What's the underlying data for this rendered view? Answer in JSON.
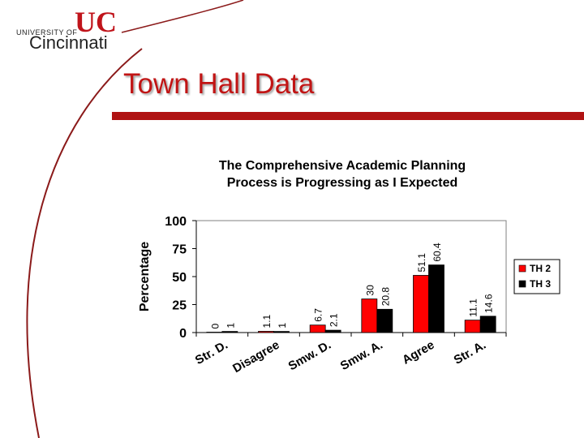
{
  "logo": {
    "university_of": "UNIVERSITY OF",
    "cincinnati": "Cincinnati",
    "mark": "UC"
  },
  "slide": {
    "title": "Town Hall Data"
  },
  "colors": {
    "title_red": "#c11414",
    "accent_red": "#b01313",
    "th2": "#ff0000",
    "th3": "#000000"
  },
  "chart_data": {
    "type": "bar",
    "title": "The Comprehensive Academic Planning Process is Progressing as I Expected",
    "title_lines": [
      "The Comprehensive Academic Planning",
      "Process is Progressing as I Expected"
    ],
    "ylabel": "Percentage",
    "xlabel": "",
    "ylim": [
      0,
      100
    ],
    "yticks": [
      "0",
      "25",
      "50",
      "75",
      "100"
    ],
    "categories": [
      "Str. D.",
      "Disagree",
      "Smw. D.",
      "Smw. A.",
      "Agree",
      "Str. A."
    ],
    "series": [
      {
        "name": "TH 2",
        "color": "#ff0000",
        "values": [
          0,
          1.1,
          6.7,
          30,
          51.1,
          11.1
        ]
      },
      {
        "name": "TH 3",
        "color": "#000000",
        "values": [
          1,
          1,
          2.1,
          20.8,
          60.4,
          14.6
        ]
      }
    ],
    "data_labels": [
      [
        "0",
        "1.1",
        "6.7",
        "30",
        "51.1",
        "11.1"
      ],
      [
        "1",
        "1",
        "2.1",
        "20.8",
        "60.4",
        "14.6"
      ]
    ],
    "legend": "right",
    "grid": false
  }
}
